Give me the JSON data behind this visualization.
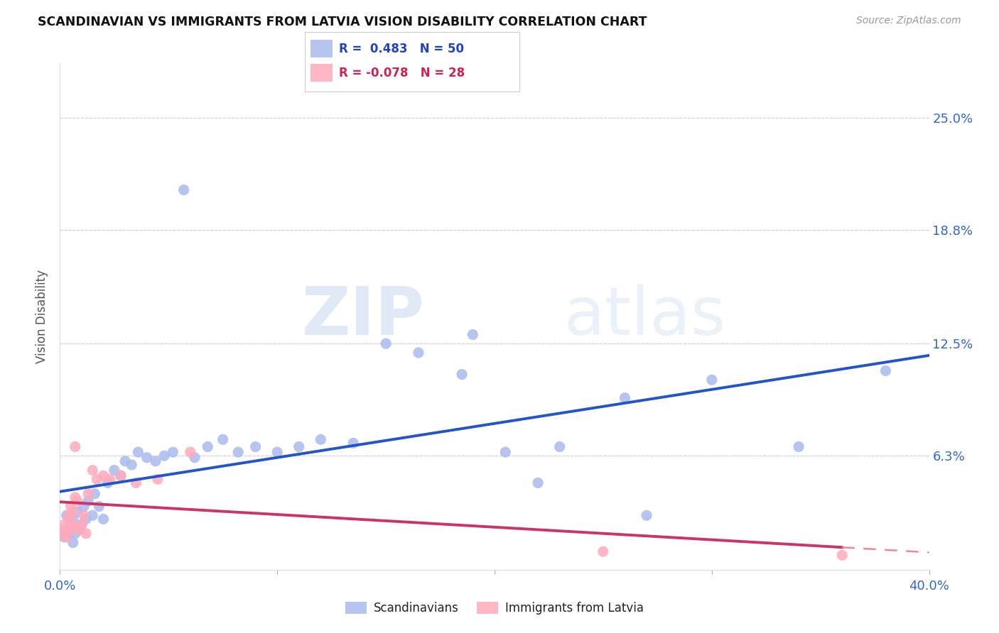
{
  "title": "SCANDINAVIAN VS IMMIGRANTS FROM LATVIA VISION DISABILITY CORRELATION CHART",
  "source": "Source: ZipAtlas.com",
  "ylabel": "Vision Disability",
  "xlim": [
    0.0,
    0.4
  ],
  "ylim": [
    0.0,
    0.28
  ],
  "yticks": [
    0.0,
    0.063,
    0.125,
    0.188,
    0.25
  ],
  "ytick_labels": [
    "",
    "6.3%",
    "12.5%",
    "18.8%",
    "25.0%"
  ],
  "xticks": [
    0.0,
    0.1,
    0.2,
    0.3,
    0.4
  ],
  "xtick_labels": [
    "0.0%",
    "",
    "",
    "",
    "40.0%"
  ],
  "grid_color": "#cccccc",
  "background_color": "#ffffff",
  "blue_color": "#aabbee",
  "pink_color": "#ffaabb",
  "blue_line_color": "#2255cc",
  "pink_line_color": "#cc3366",
  "pink_line_dashed_color": "#ee8899",
  "legend_R_blue": "0.483",
  "legend_N_blue": "50",
  "legend_R_pink": "-0.078",
  "legend_N_pink": "28",
  "watermark_zip": "ZIP",
  "watermark_atlas": "atlas",
  "scandinavians_x": [
    0.002,
    0.003,
    0.003,
    0.004,
    0.005,
    0.006,
    0.006,
    0.007,
    0.008,
    0.009,
    0.01,
    0.011,
    0.012,
    0.013,
    0.015,
    0.016,
    0.018,
    0.02,
    0.022,
    0.025,
    0.028,
    0.03,
    0.033,
    0.036,
    0.04,
    0.044,
    0.048,
    0.052,
    0.057,
    0.062,
    0.068,
    0.075,
    0.082,
    0.09,
    0.1,
    0.11,
    0.12,
    0.135,
    0.15,
    0.165,
    0.185,
    0.205,
    0.23,
    0.26,
    0.3,
    0.34,
    0.38,
    0.19,
    0.22,
    0.27
  ],
  "scandinavians_y": [
    0.018,
    0.022,
    0.03,
    0.02,
    0.025,
    0.015,
    0.028,
    0.02,
    0.032,
    0.022,
    0.025,
    0.035,
    0.028,
    0.038,
    0.03,
    0.042,
    0.035,
    0.028,
    0.048,
    0.055,
    0.052,
    0.06,
    0.058,
    0.065,
    0.062,
    0.06,
    0.063,
    0.065,
    0.21,
    0.062,
    0.068,
    0.072,
    0.065,
    0.068,
    0.065,
    0.068,
    0.072,
    0.07,
    0.125,
    0.12,
    0.108,
    0.065,
    0.068,
    0.095,
    0.105,
    0.068,
    0.11,
    0.13,
    0.048,
    0.03
  ],
  "latvia_x": [
    0.001,
    0.002,
    0.002,
    0.003,
    0.004,
    0.004,
    0.005,
    0.005,
    0.006,
    0.006,
    0.007,
    0.007,
    0.008,
    0.009,
    0.01,
    0.011,
    0.012,
    0.013,
    0.015,
    0.017,
    0.02,
    0.023,
    0.028,
    0.035,
    0.045,
    0.06,
    0.25,
    0.36
  ],
  "latvia_y": [
    0.02,
    0.025,
    0.022,
    0.018,
    0.028,
    0.03,
    0.022,
    0.035,
    0.032,
    0.025,
    0.068,
    0.04,
    0.038,
    0.022,
    0.025,
    0.03,
    0.02,
    0.042,
    0.055,
    0.05,
    0.052,
    0.05,
    0.052,
    0.048,
    0.05,
    0.065,
    0.01,
    0.008
  ]
}
